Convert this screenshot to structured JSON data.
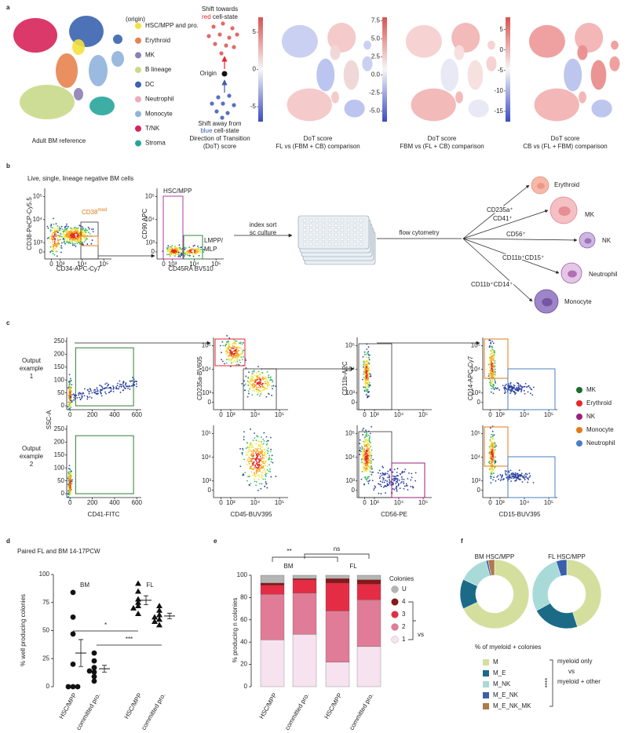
{
  "figure": {
    "panel_labels": [
      "a",
      "b",
      "c",
      "d",
      "e",
      "f"
    ],
    "a": {
      "legend_title": "(origin)",
      "legend": [
        {
          "name": "HSC/MPP and pro.",
          "color": "#f4e13c"
        },
        {
          "name": "Erythroid",
          "color": "#e8834e"
        },
        {
          "name": "MK",
          "color": "#8c7fb5"
        },
        {
          "name": "B lineage",
          "color": "#c9d98a"
        },
        {
          "name": "DC",
          "color": "#3a63b0"
        },
        {
          "name": "Neutrophil",
          "color": "#f0a9c0"
        },
        {
          "name": "Monocyte",
          "color": "#8fb3dc"
        },
        {
          "name": "T/NK",
          "color": "#d7245a"
        },
        {
          "name": "Stroma",
          "color": "#27a59a"
        }
      ],
      "umap_caption": "Adult BM reference",
      "dot_diagram": {
        "towards_line1": "Shift towards",
        "towards_color": "red",
        "towards_rest": " cell-state",
        "origin": "Origin",
        "away_line1": "Shift away from",
        "away_color": "blue",
        "away_rest": " cell-state",
        "caption": [
          "Direction of Transition",
          "(DoT) score"
        ]
      },
      "score_panels": [
        {
          "caption": [
            "DoT score",
            "FL vs (FBM + CB) comparison"
          ],
          "lim": [
            -7,
            7
          ],
          "ticks": [
            5,
            0,
            -5
          ]
        },
        {
          "caption": [
            "DoT score",
            "FBM vs (FL + CB) comparison"
          ],
          "lim": [
            -6.5,
            8
          ],
          "ticks": [
            7.5,
            {
              "value": 5,
              "label": "5.0"
            },
            2.5,
            {
              "value": 0,
              "label": "0.0"
            },
            -2.5,
            {
              "value": -5,
              "label": "-5.0"
            }
          ]
        },
        {
          "caption": [
            "DoT score",
            "CB vs (FL + FBM) comparison"
          ],
          "lim": [
            -17.5,
            8
          ],
          "ticks": [
            5,
            0,
            -5,
            -10,
            -15
          ]
        }
      ]
    },
    "flow_log_ticks": [
      0,
      {
        "value": 1000,
        "label": "10³"
      },
      {
        "value": 10000,
        "label": "10⁴"
      },
      {
        "value": 100000,
        "label": "10⁵"
      }
    ],
    "b": {
      "gate_title": "Live, single, lineage negative BM cells",
      "plot1": {
        "ylabel": "CD38-PeCP-Cy5.5",
        "xlabel": "CD34-APC-Cy7",
        "gate": "CD38",
        "gate_sup": "med"
      },
      "plot2": {
        "ylabel": "CD90 APC",
        "xlabel": "CD45RA BV510",
        "gate1": "HSC/MPP",
        "gate2": [
          "LMPP/",
          "MLP"
        ]
      },
      "step1": [
        "index sort",
        "sc culture"
      ],
      "step2": "flow cytometry",
      "markers": [
        "CD235a⁺",
        "CD41⁺",
        "CD56⁺",
        "CD11b⁺CD15⁺",
        "CD11b⁺CD14⁺"
      ],
      "cells": [
        "Erythroid",
        "MK",
        "NK",
        "Neutrophil",
        "Monocyte"
      ]
    },
    "c": {
      "rows": [
        "Output example 1",
        "Output example 2"
      ],
      "scatter_axes": {
        "ylabel": "SSC-A",
        "xlabel": "CD41-FITC",
        "ylim": [
          -15,
          265
        ],
        "yticks": [
          0,
          50,
          100,
          150,
          200,
          250
        ],
        "xlim": [
          -30,
          640
        ],
        "xticks": [
          0,
          200,
          400,
          600
        ]
      },
      "columns": [
        {
          "ylabel": "CD235a-BV605",
          "xlabel": "CD45-BUV395"
        },
        {
          "ylabel": "CD11b-APC",
          "xlabel": "CD56-PE"
        },
        {
          "ylabel": "CD14-APC-Cy7",
          "xlabel": "CD15-BUV395"
        }
      ],
      "legend": [
        {
          "name": "MK",
          "color": "#1e6b2f"
        },
        {
          "name": "Erythroid",
          "color": "#e8262d"
        },
        {
          "name": "NK",
          "color": "#9b1f7e"
        },
        {
          "name": "Monocyte",
          "color": "#e07b18"
        },
        {
          "name": "Neutrophil",
          "color": "#4a7fc1"
        }
      ]
    }
  },
  "chart_data": [
    {
      "type": "scatter",
      "title": "Paired FL and BM 14-17PCW",
      "ylabel": "% well producing colonies",
      "groups": [
        "BM",
        "FL"
      ],
      "categories": [
        "HSC/MPP",
        "committed pro.",
        "HSC/MPP",
        "committed pro."
      ],
      "markers": [
        "circle",
        "circle",
        "triangle",
        "triangle"
      ],
      "values": [
        [
          84,
          62,
          47,
          20,
          0,
          0,
          0
        ],
        [
          30,
          23,
          17,
          14,
          13,
          9,
          5
        ],
        [
          92,
          85,
          78,
          75,
          72,
          70,
          65
        ],
        [
          72,
          68,
          64,
          62,
          60,
          58,
          55
        ]
      ],
      "means": [
        30,
        16,
        77,
        63
      ],
      "errors": [
        12,
        3,
        4,
        2.5
      ],
      "significance": [
        "*",
        "***"
      ],
      "ylim": [
        0,
        100
      ],
      "yticks": [
        0,
        25,
        50,
        75,
        100
      ]
    },
    {
      "type": "stacked-bar",
      "ylabel": "% producing n colonies",
      "groups": [
        "BM",
        "FL"
      ],
      "categories": [
        "HSC/MPP",
        "committed pro.",
        "HSC/MPP",
        "committed pro."
      ],
      "legend_title": "Colonies",
      "series": [
        {
          "name": "1",
          "color": "#f6e3ef",
          "values": [
            42,
            47,
            22,
            36
          ]
        },
        {
          "name": "2",
          "color": "#e07c97",
          "values": [
            41,
            37,
            46,
            42
          ]
        },
        {
          "name": "3",
          "color": "#e42d44",
          "values": [
            8,
            12,
            25,
            14
          ]
        },
        {
          "name": "4",
          "color": "#8a1616",
          "values": [
            2,
            1,
            4,
            4
          ]
        },
        {
          "name": "U",
          "color": "#b5b5b5",
          "values": [
            7,
            3,
            3,
            4
          ]
        }
      ],
      "significance": [
        "**",
        "ns"
      ],
      "bracket_label": "vs",
      "ylim": [
        0,
        100
      ],
      "yticks": [
        0,
        20,
        40,
        60,
        80,
        100
      ]
    },
    {
      "type": "donut",
      "legend_title": "% of myeloid + colonies",
      "categories": [
        "M",
        "M_E",
        "M_NK",
        "M_E_NK",
        "M_E_NK_MK"
      ],
      "colors": [
        "#d4df9e",
        "#1b6b87",
        "#a8dad8",
        "#3b5fac",
        "#b07a4b"
      ],
      "charts": [
        {
          "title": "BM HSC/MPP",
          "values": [
            68,
            14,
            14,
            1,
            3
          ]
        },
        {
          "title": "FL HSC/MPP",
          "values": [
            45,
            22,
            28,
            5,
            0
          ]
        }
      ],
      "bracket_labels": [
        "myeloid only",
        "vs",
        "myeloid + other"
      ],
      "significance": "****"
    }
  ]
}
